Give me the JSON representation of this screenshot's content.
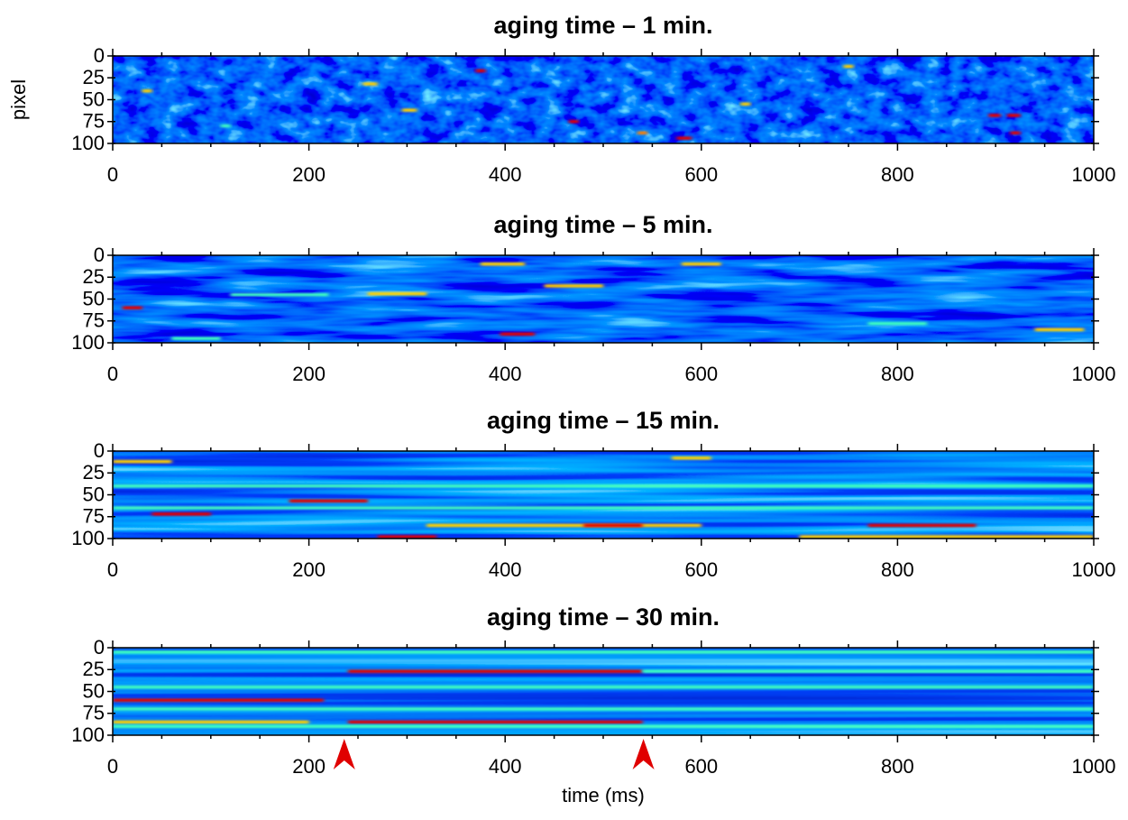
{
  "chart_data": [
    {
      "type": "heatmap",
      "title": "aging time – 1 min.",
      "ylabel": "pixel",
      "xlim": [
        0,
        1000
      ],
      "xticks": [
        0,
        200,
        400,
        600,
        800,
        1000
      ],
      "xminorticks": [
        50,
        100,
        150,
        250,
        300,
        350,
        450,
        500,
        550,
        650,
        700,
        750,
        850,
        900,
        950
      ],
      "ylim": [
        0,
        100
      ],
      "yticks": [
        0,
        25,
        50,
        75,
        100
      ],
      "y_inverted": true,
      "segments": {
        "x0": [
          370,
          465,
          575,
          893,
          912,
          745,
          255,
          535,
          915,
          295,
          30,
          640,
          110
        ],
        "x1": [
          380,
          475,
          590,
          905,
          925,
          755,
          270,
          545,
          925,
          310,
          40,
          650,
          120
        ],
        "y": [
          17,
          75,
          94,
          68,
          68,
          12,
          32,
          88,
          88,
          62,
          40,
          55,
          80
        ],
        "color": [
          "#e00000",
          "#e00000",
          "#e00000",
          "#e00000",
          "#e00000",
          "#ffd000",
          "#ffd000",
          "#ff8000",
          "#e00000",
          "#ffd000",
          "#ffd000",
          "#ffd000",
          "#40ffc0"
        ]
      }
    },
    {
      "type": "heatmap",
      "title": "aging time – 5 min.",
      "xlim": [
        0,
        1000
      ],
      "xticks": [
        0,
        200,
        400,
        600,
        800,
        1000
      ],
      "xminorticks": [
        50,
        100,
        150,
        250,
        300,
        350,
        450,
        500,
        550,
        650,
        700,
        750,
        850,
        900,
        950
      ],
      "ylim": [
        0,
        100
      ],
      "yticks": [
        0,
        25,
        50,
        75,
        100
      ],
      "y_inverted": true,
      "segments": {
        "x0": [
          10,
          395,
          375,
          440,
          260,
          120,
          940,
          770,
          580,
          60
        ],
        "x1": [
          30,
          430,
          420,
          500,
          320,
          220,
          990,
          830,
          620,
          110
        ],
        "y": [
          60,
          90,
          10,
          35,
          44,
          45,
          85,
          78,
          10,
          95
        ],
        "color": [
          "#e00000",
          "#e00000",
          "#ffd000",
          "#ffd000",
          "#ffd000",
          "#40ffc0",
          "#ffd000",
          "#40ffc0",
          "#ffd000",
          "#40ffc0"
        ]
      }
    },
    {
      "type": "heatmap",
      "title": "aging time – 15 min.",
      "xlim": [
        0,
        1000
      ],
      "xticks": [
        0,
        200,
        400,
        600,
        800,
        1000
      ],
      "xminorticks": [
        50,
        100,
        150,
        250,
        300,
        350,
        450,
        500,
        550,
        650,
        700,
        750,
        850,
        900,
        950
      ],
      "ylim": [
        0,
        100
      ],
      "yticks": [
        0,
        25,
        50,
        75,
        100
      ],
      "y_inverted": true,
      "segments": {
        "x0": [
          0,
          40,
          180,
          270,
          320,
          480,
          570,
          770,
          700,
          0,
          0
        ],
        "x1": [
          60,
          100,
          260,
          330,
          600,
          540,
          610,
          880,
          1000,
          1000,
          1000
        ],
        "y": [
          12,
          72,
          57,
          98,
          85,
          85,
          8,
          85,
          98,
          40,
          65
        ],
        "color": [
          "#ffd000",
          "#e00000",
          "#e00000",
          "#e00000",
          "#ffd000",
          "#e00000",
          "#ffd000",
          "#e00000",
          "#ffd000",
          "#40ffc0",
          "#40ffc0"
        ]
      }
    },
    {
      "type": "heatmap",
      "title": "aging time – 30 min.",
      "xlabel": "time (ms)",
      "xlim": [
        0,
        1000
      ],
      "xticks": [
        0,
        200,
        400,
        600,
        800,
        1000
      ],
      "xminorticks": [
        50,
        100,
        150,
        250,
        300,
        350,
        450,
        500,
        550,
        650,
        700,
        750,
        850,
        900,
        950
      ],
      "ylim": [
        0,
        100
      ],
      "yticks": [
        0,
        25,
        50,
        75,
        100
      ],
      "y_inverted": true,
      "segments": {
        "x0": [
          0,
          240,
          540,
          0,
          240,
          0,
          0,
          0,
          0,
          0
        ],
        "x1": [
          215,
          540,
          1000,
          200,
          540,
          1000,
          1000,
          1000,
          1000,
          1000
        ],
        "y": [
          60,
          27,
          27,
          85,
          85,
          5,
          90,
          45,
          70,
          15
        ],
        "color": [
          "#e00000",
          "#e00000",
          "#40ffc0",
          "#ffd000",
          "#e00000",
          "#40ffc0",
          "#40ffc0",
          "#40ffc0",
          "#40ffc0",
          "#40c0ff"
        ]
      },
      "arrows": [
        236,
        541
      ],
      "arrow_color": "#e00000"
    }
  ]
}
